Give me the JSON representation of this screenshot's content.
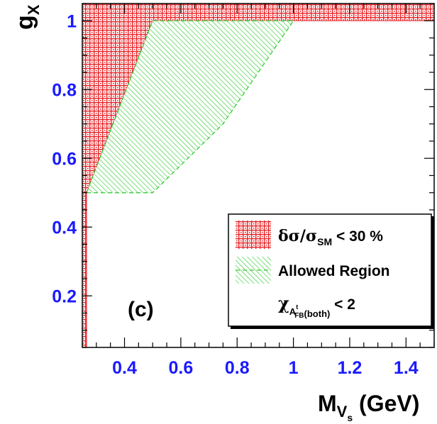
{
  "chart_data": {
    "type": "area",
    "xlabel": {
      "main": "M",
      "sub": "V",
      "subsub": "s",
      "unit": "(GeV)"
    },
    "ylabel": {
      "main": "g",
      "sub": "X"
    },
    "xlim": [
      0.25,
      1.5
    ],
    "ylim": [
      0.05,
      1.05
    ],
    "xticks": [
      0.4,
      0.6,
      0.8,
      1.0,
      1.2,
      1.4
    ],
    "xtick_labels": [
      "0.4",
      "0.6",
      "0.8",
      "1",
      "1.2",
      "1.4"
    ],
    "yticks": [
      0.2,
      0.4,
      0.6,
      0.8,
      1.0
    ],
    "ytick_labels": [
      "0.2",
      "0.4",
      "0.6",
      "0.8",
      "1"
    ],
    "panel_label": "(c)",
    "series": [
      {
        "name": "δσ/σ_SM < 30 %",
        "color": "#e8262a",
        "regions": [
          [
            [
              0.25,
              0.05
            ],
            [
              0.265,
              0.05
            ],
            [
              0.265,
              0.5
            ],
            [
              0.5,
              1.0
            ],
            [
              1.5,
              1.0
            ],
            [
              1.5,
              1.05
            ],
            [
              0.25,
              1.05
            ]
          ]
        ]
      },
      {
        "name": "Allowed Region",
        "color": "#33cc33",
        "regions": [
          [
            [
              0.265,
              0.5
            ],
            [
              0.5,
              0.5
            ],
            [
              0.75,
              0.7
            ],
            [
              1.0,
              1.0
            ],
            [
              0.5,
              1.0
            ]
          ]
        ]
      }
    ],
    "legend": {
      "placement": "bottom-right",
      "entries": [
        {
          "parts": [
            "δσ/σ",
            "SM",
            " < 30 %"
          ],
          "swatch": "red"
        },
        {
          "parts": [
            "Allowed Region"
          ],
          "swatch": "green"
        },
        {
          "parts": [
            "χ",
            "A",
            "t",
            "FB",
            "(both)",
            " < 2"
          ],
          "swatch": "white"
        }
      ]
    }
  }
}
